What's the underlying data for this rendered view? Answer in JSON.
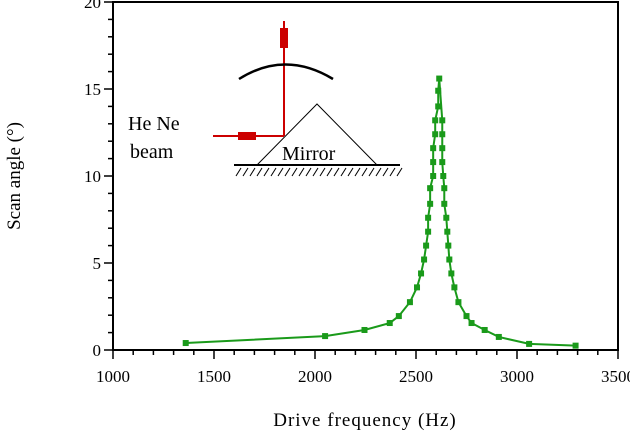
{
  "chart_data": {
    "type": "line",
    "xlabel": "Drive frequency (Hz)",
    "ylabel": "Scan angle (°)",
    "xlim": [
      1000,
      3500
    ],
    "ylim": [
      0,
      20
    ],
    "xticks": [
      "1000",
      "1500",
      "2000",
      "2500",
      "3000",
      "3500"
    ],
    "yticks": [
      "0",
      "5",
      "10",
      "15",
      "20"
    ],
    "grid": false,
    "series_color": "#1a9a1a",
    "x": [
      1360,
      2050,
      2245,
      2370,
      2415,
      2470,
      2505,
      2525,
      2540,
      2550,
      2560,
      2560,
      2570,
      2570,
      2585,
      2585,
      2585,
      2595,
      2595,
      2610,
      2610,
      2615,
      2630,
      2630,
      2630,
      2630,
      2635,
      2640,
      2640,
      2650,
      2655,
      2660,
      2665,
      2675,
      2690,
      2710,
      2750,
      2775,
      2840,
      2910,
      3060,
      3290
    ],
    "y": [
      0.4,
      0.8,
      1.15,
      1.55,
      1.95,
      2.75,
      3.6,
      4.4,
      5.2,
      6.0,
      6.8,
      7.6,
      8.4,
      9.3,
      10.0,
      10.8,
      11.6,
      12.4,
      13.2,
      14.0,
      14.9,
      15.6,
      13.2,
      12.4,
      11.6,
      10.8,
      10.0,
      9.3,
      8.4,
      7.6,
      6.8,
      6.0,
      5.2,
      4.4,
      3.6,
      2.75,
      1.95,
      1.55,
      1.15,
      0.75,
      0.35,
      0.25
    ],
    "annotations": {
      "beam_label_1": "He Ne",
      "beam_label_2": "beam",
      "mirror_label": "Mirror",
      "beam_color": "#cc0000"
    }
  }
}
